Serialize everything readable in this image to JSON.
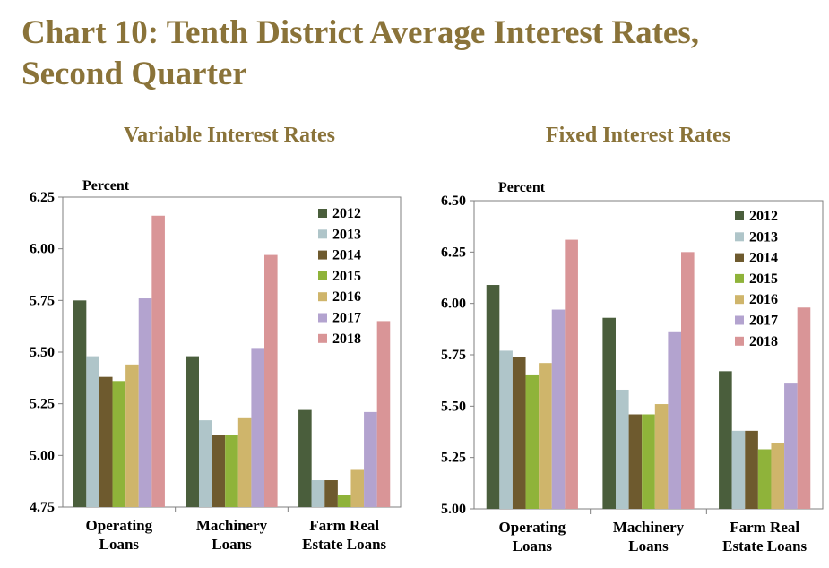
{
  "title_line1": "Chart 10: Tenth District Average Interest Rates,",
  "title_line2": "Second Quarter",
  "colors": {
    "title": "#8a7339",
    "series": [
      "#4a5e3c",
      "#afc5c9",
      "#6e5a2e",
      "#8fb33a",
      "#cfb56b",
      "#b3a3cf",
      "#d99597"
    ]
  },
  "chart_data": [
    {
      "type": "bar",
      "title": "Variable Interest Rates",
      "ylabel": "Percent",
      "ylim": [
        4.75,
        6.25
      ],
      "yticks": [
        "6.25",
        "6.00",
        "5.75",
        "5.50",
        "5.25",
        "5.00",
        "4.75"
      ],
      "categories": [
        [
          "Operating",
          "Loans"
        ],
        [
          "Machinery",
          "Loans"
        ],
        [
          "Farm Real",
          "Estate Loans"
        ]
      ],
      "legend_position": "top-right",
      "grid": false,
      "series": [
        {
          "name": "2012",
          "values": [
            5.75,
            5.48,
            5.22
          ]
        },
        {
          "name": "2013",
          "values": [
            5.48,
            5.17,
            4.88
          ]
        },
        {
          "name": "2014",
          "values": [
            5.38,
            5.1,
            4.88
          ]
        },
        {
          "name": "2015",
          "values": [
            5.36,
            5.1,
            4.81
          ]
        },
        {
          "name": "2016",
          "values": [
            5.44,
            5.18,
            4.93
          ]
        },
        {
          "name": "2017",
          "values": [
            5.76,
            5.52,
            5.21
          ]
        },
        {
          "name": "2018",
          "values": [
            6.16,
            5.97,
            5.65
          ]
        }
      ]
    },
    {
      "type": "bar",
      "title": "Fixed Interest Rates",
      "ylabel": "Percent",
      "ylim": [
        5.0,
        6.5
      ],
      "yticks": [
        "6.50",
        "6.25",
        "6.00",
        "5.75",
        "5.50",
        "5.25",
        "5.00"
      ],
      "categories": [
        [
          "Operating",
          "Loans"
        ],
        [
          "Machinery",
          "Loans"
        ],
        [
          "Farm Real",
          "Estate Loans"
        ]
      ],
      "legend_position": "top-right",
      "grid": false,
      "series": [
        {
          "name": "2012",
          "values": [
            6.09,
            5.93,
            5.67
          ]
        },
        {
          "name": "2013",
          "values": [
            5.77,
            5.58,
            5.38
          ]
        },
        {
          "name": "2014",
          "values": [
            5.74,
            5.46,
            5.38
          ]
        },
        {
          "name": "2015",
          "values": [
            5.65,
            5.46,
            5.29
          ]
        },
        {
          "name": "2016",
          "values": [
            5.71,
            5.51,
            5.32
          ]
        },
        {
          "name": "2017",
          "values": [
            5.97,
            5.86,
            5.61
          ]
        },
        {
          "name": "2018",
          "values": [
            6.31,
            6.25,
            5.98
          ]
        }
      ]
    }
  ]
}
